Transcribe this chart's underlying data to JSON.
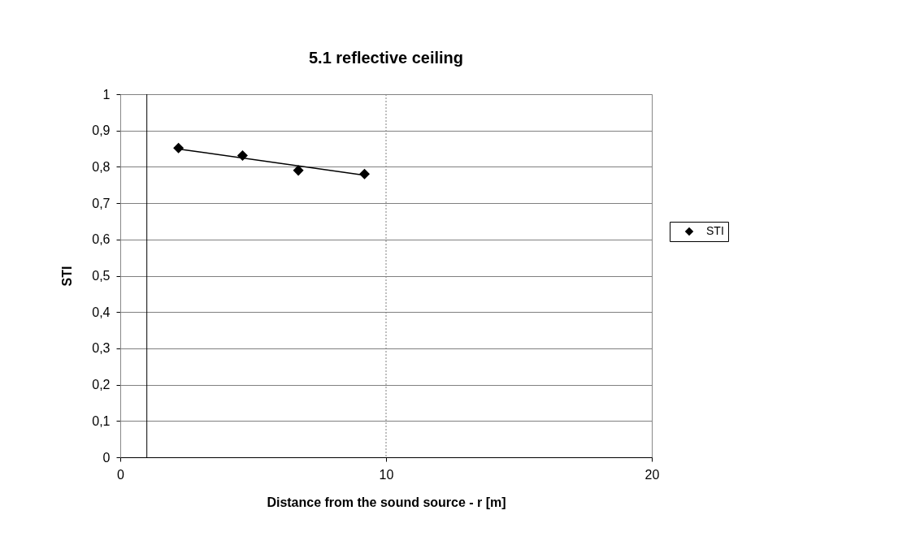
{
  "chart_data": {
    "type": "scatter",
    "title": "5.1 reflective ceiling",
    "xlabel": "Distance from the sound source - r  [m]",
    "ylabel": "STI",
    "series": [
      {
        "name": "STI",
        "color": "#000000",
        "marker": "diamond",
        "x": [
          2.19,
          4.6,
          6.7,
          9.19
        ],
        "values": [
          0.852,
          0.831,
          0.79,
          0.78
        ]
      },
      {
        "type": "line",
        "color": "#000000",
        "marker": "none",
        "x": [
          2.19,
          9.19
        ],
        "values": [
          0.849,
          0.777
        ]
      }
    ],
    "xlim": [
      0,
      20
    ],
    "xticks": [
      0,
      10,
      20
    ],
    "ylim": [
      0,
      1
    ],
    "yticks": [
      0,
      {
        "value": 0.1,
        "label": "0,1"
      },
      {
        "value": 0.2,
        "label": "0,2"
      },
      {
        "value": 0.3,
        "label": "0,3"
      },
      {
        "value": 0.4,
        "label": "0,4"
      },
      {
        "value": 0.5,
        "label": "0,5"
      },
      {
        "value": 0.6,
        "label": "0,6"
      },
      {
        "value": 0.7,
        "label": "0,7"
      },
      {
        "value": 0.8,
        "label": "0,8"
      },
      {
        "value": 0.9,
        "label": "0,9"
      },
      1
    ],
    "ref_lines": [
      {
        "axis": "x",
        "value": 1,
        "color": "#000000"
      },
      {
        "axis": "x",
        "value": 10,
        "color": "#808080",
        "line_style": "dotted"
      }
    ],
    "grid": "y",
    "legend": "right"
  }
}
